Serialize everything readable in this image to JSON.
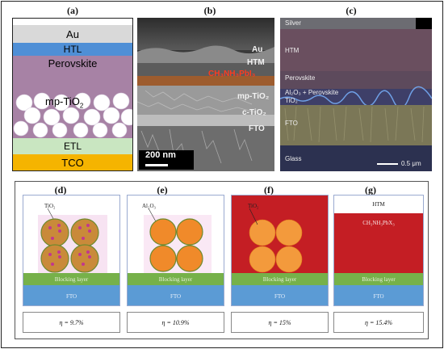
{
  "panel_labels": {
    "a": "(a)",
    "b": "(b)",
    "c": "(c)",
    "d": "(d)",
    "e": "(e)",
    "f": "(f)",
    "g": "(g)"
  },
  "panel_a": {
    "au": "Au",
    "htl": "HTL",
    "perovskite": "Perovskite",
    "mp_tio2": "mp-TiO",
    "mp_tio2_sub": "2",
    "etl": "ETL",
    "tco": "TCO",
    "colors": {
      "au": "#d9d9d9",
      "htl": "#4f8fd6",
      "perovskite": "#a782a5",
      "etl": "#c9e6c1",
      "tco": "#f5b400"
    }
  },
  "panel_b": {
    "au": "Au",
    "htm": "HTM",
    "perovskite": "CH₃NH₃PbI₃",
    "mp_tio2": "mp-TiO₂",
    "c_tio2": "c-TiO₂",
    "fto": "FTO",
    "scale": "200 nm"
  },
  "panel_c": {
    "silver": "Silver",
    "htm": "HTM",
    "perovskite": "Perovskite",
    "al2o3_line1": "Al₂O₃ + Perovskite",
    "al2o3_line2": "TiO₂",
    "fto": "FTO",
    "glass": "Glass",
    "scale": "0.5 μm"
  },
  "panel_d": {
    "material": "TiO₂",
    "blocking": "Blocking layer",
    "fto": "FTO",
    "eta": "η = 9.7%"
  },
  "panel_e": {
    "material": "Al₂O₃",
    "blocking": "Blocking layer",
    "fto": "FTO",
    "eta": "η = 10.9%"
  },
  "panel_f": {
    "material": "TiO₂",
    "blocking": "Blocking layer",
    "fto": "FTO",
    "eta": "η = 15%"
  },
  "panel_g": {
    "material": "HTM",
    "perovskite": "CH₃NH₃PbX₃",
    "blocking": "Blocking layer",
    "fto": "FTO",
    "eta": "η = 15.4%"
  }
}
